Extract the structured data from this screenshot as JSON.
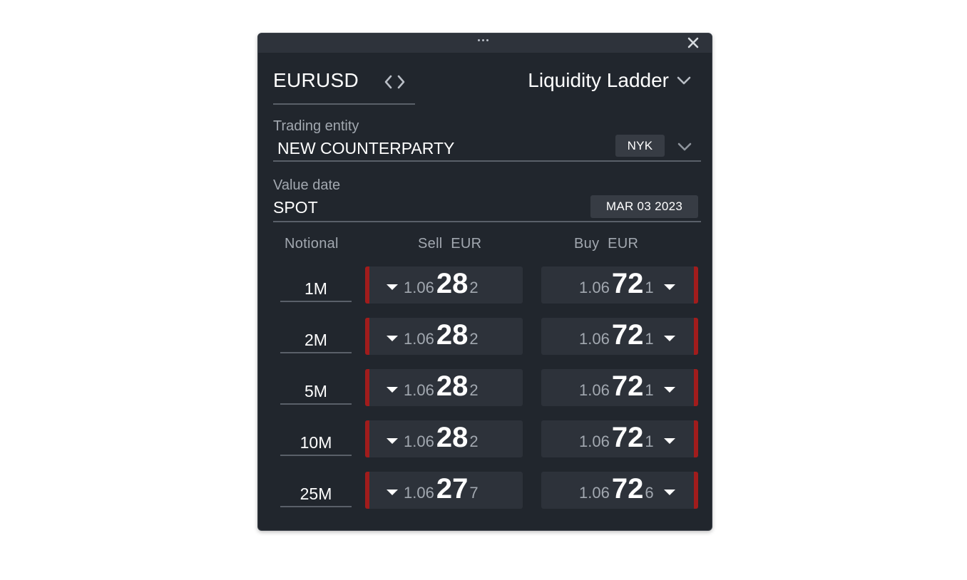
{
  "window": {
    "drag_icon": "ellipsis-icon",
    "close_icon": "close-icon"
  },
  "header": {
    "symbol": "EURUSD",
    "swap_icon": "swap-icon",
    "view": "Liquidity Ladder"
  },
  "entity": {
    "label": "Trading entity",
    "value": "NEW COUNTERPARTY",
    "location": "NYK"
  },
  "value_date": {
    "label": "Value date",
    "tenor": "SPOT",
    "date": "MAR 03 2023"
  },
  "ladder": {
    "columns": [
      "Notional",
      "Sell  EUR",
      "Buy  EUR"
    ],
    "rows": [
      {
        "notional": "1M",
        "sell": {
          "big": "1.06",
          "pips": "28",
          "frac": "2"
        },
        "buy": {
          "big": "1.06",
          "pips": "72",
          "frac": "1"
        }
      },
      {
        "notional": "2M",
        "sell": {
          "big": "1.06",
          "pips": "28",
          "frac": "2"
        },
        "buy": {
          "big": "1.06",
          "pips": "72",
          "frac": "1"
        }
      },
      {
        "notional": "5M",
        "sell": {
          "big": "1.06",
          "pips": "28",
          "frac": "2"
        },
        "buy": {
          "big": "1.06",
          "pips": "72",
          "frac": "1"
        }
      },
      {
        "notional": "10M",
        "sell": {
          "big": "1.06",
          "pips": "28",
          "frac": "2"
        },
        "buy": {
          "big": "1.06",
          "pips": "72",
          "frac": "1"
        }
      },
      {
        "notional": "25M",
        "sell": {
          "big": "1.06",
          "pips": "27",
          "frac": "7"
        },
        "buy": {
          "big": "1.06",
          "pips": "72",
          "frac": "6"
        }
      }
    ],
    "tick_direction": "down"
  },
  "colors": {
    "panel_bg": "#21262d",
    "tile_bg": "#2d323a",
    "tick_down": "#a11c1c",
    "muted_text": "#a2a8b0"
  }
}
